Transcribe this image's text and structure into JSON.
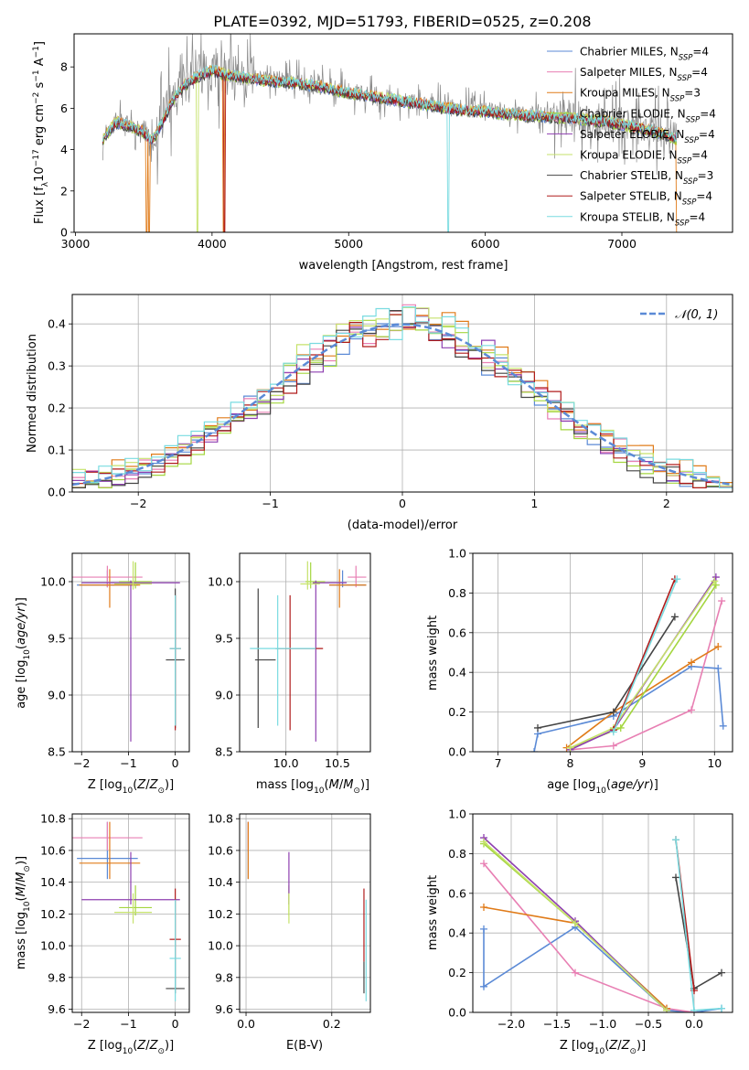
{
  "figure_title": "PLATE=0392, MJD=51793, FIBERID=0525, z=0.208",
  "colors": {
    "Chabrier MILES": "#5b8ad6",
    "Salpeter MILES": "#e87fb3",
    "Kroupa MILES": "#e07b19",
    "Chabrier ELODIE": "#a4d63f",
    "Salpeter ELODIE": "#8e3fb0",
    "Kroupa ELODIE": "#c6e26b",
    "Chabrier STELIB": "#444444",
    "Salpeter STELIB": "#b01b1b",
    "Kroupa STELIB": "#79dbe0",
    "data": "#8a8a8a",
    "normal": "#5b8ad6"
  },
  "chart_data": [
    {
      "id": "spectrum",
      "type": "line",
      "xlabel": "wavelength [Angstrom, rest frame]",
      "ylabel": "Flux [fλ10⁻¹⁷ erg cm⁻² s⁻¹ A⁻¹]",
      "xlim": [
        2990,
        7810
      ],
      "ylim": [
        0,
        9.6
      ],
      "xticks": [
        3000,
        4000,
        5000,
        6000,
        7000
      ],
      "yticks": [
        0,
        2,
        4,
        6,
        8
      ],
      "legend": "top-right",
      "continuum": {
        "x": [
          3200,
          3300,
          3400,
          3500,
          3550,
          3600,
          3700,
          3800,
          3900,
          4000,
          4100,
          4200,
          4400,
          4600,
          4800,
          5000,
          5200,
          5500,
          5800,
          6000,
          6300,
          6600,
          6900,
          7200,
          7400
        ],
        "y": [
          4.6,
          5.4,
          5.2,
          4.9,
          4.5,
          4.9,
          6.3,
          7.2,
          7.6,
          7.9,
          7.7,
          7.6,
          7.4,
          7.3,
          7.1,
          6.8,
          6.6,
          6.3,
          6.0,
          5.9,
          5.7,
          5.6,
          5.4,
          5.0,
          4.6
        ]
      },
      "series": [
        {
          "name": "Chabrier MILES, N_SSP=4",
          "legend_main": "Chabrier MILES, N",
          "legend_sub": "SSP",
          "legend_tail": "=4"
        },
        {
          "name": "Salpeter MILES, N_SSP=4",
          "legend_main": "Salpeter MILES, N",
          "legend_sub": "SSP",
          "legend_tail": "=4"
        },
        {
          "name": "Kroupa MILES, N_SSP=3",
          "legend_main": "Kroupa MILES, N",
          "legend_sub": "SSP",
          "legend_tail": "=3"
        },
        {
          "name": "Chabrier ELODIE, N_SSP=4",
          "legend_main": "Chabrier ELODIE, N",
          "legend_sub": "SSP",
          "legend_tail": "=4"
        },
        {
          "name": "Salpeter ELODIE, N_SSP=4",
          "legend_main": "Salpeter ELODIE, N",
          "legend_sub": "SSP",
          "legend_tail": "=4"
        },
        {
          "name": "Kroupa ELODIE, N_SSP=4",
          "legend_main": "Kroupa ELODIE, N",
          "legend_sub": "SSP",
          "legend_tail": "=4"
        },
        {
          "name": "Chabrier STELIB, N_SSP=3",
          "legend_main": "Chabrier STELIB, N",
          "legend_sub": "SSP",
          "legend_tail": "=3"
        },
        {
          "name": "Salpeter STELIB, N_SSP=4",
          "legend_main": "Salpeter STELIB, N",
          "legend_sub": "SSP",
          "legend_tail": "=4"
        },
        {
          "name": "Kroupa STELIB, N_SSP=4",
          "legend_main": "Kroupa STELIB, N",
          "legend_sub": "SSP",
          "legend_tail": "=4"
        }
      ]
    },
    {
      "id": "residuals",
      "type": "histogram",
      "xlabel": "(data-model)/error",
      "ylabel": "Normed distribution",
      "xlim": [
        -2.5,
        2.5
      ],
      "ylim": [
        0,
        0.47
      ],
      "xticks": [
        -2,
        -1,
        0,
        1,
        2
      ],
      "yticks": [
        0.0,
        0.1,
        0.2,
        0.3,
        0.4
      ],
      "grid": true,
      "legend": "top-right",
      "reference": "N(0,1)",
      "legend_label": "𝒩(0, 1)"
    },
    {
      "id": "age_vs_Z",
      "type": "errorbar",
      "xlabel": "Z [log₁₀(Z/Z⊙)]",
      "ylabel": "age  [log₁₀(age/yr)]",
      "xlim": [
        -2.2,
        0.3
      ],
      "ylim": [
        8.5,
        10.25
      ],
      "xticks": [
        -2,
        -1,
        0
      ],
      "yticks": [
        8.5,
        9.0,
        9.5,
        10.0
      ],
      "grid": true
    },
    {
      "id": "age_vs_mass",
      "type": "errorbar",
      "xlabel": "mass [log₁₀(M/M⊙)]",
      "ylabel": "",
      "xlim": [
        9.55,
        10.82
      ],
      "ylim": [
        8.5,
        10.25
      ],
      "xticks": [
        10.0,
        10.5
      ],
      "yticks": [
        8.5,
        9.0,
        9.5,
        10.0
      ],
      "grid": true
    },
    {
      "id": "weight_vs_age",
      "type": "line",
      "xlabel": "age  [log₁₀(age/yr)]",
      "ylabel": "mass weight",
      "xlim": [
        6.65,
        10.25
      ],
      "ylim": [
        0,
        1
      ],
      "xticks": [
        7,
        8,
        9,
        10
      ],
      "yticks": [
        0.0,
        0.2,
        0.4,
        0.6,
        0.8,
        1.0
      ],
      "grid": true
    },
    {
      "id": "mass_vs_Z",
      "type": "errorbar",
      "xlabel": "Z [log₁₀(Z/Z⊙)]",
      "ylabel": "mass [log₁₀(M/M⊙)]",
      "xlim": [
        -2.2,
        0.3
      ],
      "ylim": [
        9.58,
        10.83
      ],
      "xticks": [
        -2,
        -1,
        0
      ],
      "yticks": [
        9.6,
        9.8,
        10.0,
        10.2,
        10.4,
        10.6,
        10.8
      ],
      "grid": true
    },
    {
      "id": "mass_vs_ebv",
      "type": "errorbar",
      "xlabel": "E(B-V)",
      "ylabel": "",
      "xlim": [
        -0.015,
        0.29
      ],
      "ylim": [
        9.58,
        10.83
      ],
      "xticks": [
        0.0,
        0.2
      ],
      "yticks": [
        9.6,
        9.8,
        10.0,
        10.2,
        10.4,
        10.6,
        10.8
      ],
      "grid": true
    },
    {
      "id": "weight_vs_Z",
      "type": "line",
      "xlabel": "Z [log₁₀(Z/Z⊙)]",
      "ylabel": "mass weight",
      "xlim": [
        -2.42,
        0.42
      ],
      "ylim": [
        0,
        1
      ],
      "xticks": [
        -2.0,
        -1.5,
        -1.0,
        -0.5,
        0.0
      ],
      "yticks": [
        0.0,
        0.2,
        0.4,
        0.6,
        0.8,
        1.0
      ],
      "grid": true
    }
  ],
  "fits": [
    {
      "model": "Chabrier MILES",
      "Z": -1.45,
      "Zerr": 0.65,
      "age": 9.97,
      "ageErrLo": 0.02,
      "ageErrHi": 0.13,
      "mass": 10.55,
      "massErrLo": 0.13,
      "massErrHi": 0.23,
      "ebv": 0.005,
      "sfh_age": [
        10.12,
        10.05,
        9.68,
        8.6,
        7.55,
        7.5
      ],
      "sfh_w": [
        0.13,
        0.42,
        0.43,
        0.18,
        0.09,
        0.0
      ],
      "sfh_Z": [
        -2.3,
        -2.3,
        -1.3,
        -0.3,
        0.0,
        0.3
      ],
      "sfh_wz": [
        0.42,
        0.13,
        0.43,
        0.01,
        0.0,
        0.02
      ]
    },
    {
      "model": "Salpeter MILES",
      "Z": -1.45,
      "Zerr": 0.75,
      "age": 10.04,
      "ageErrLo": 0.09,
      "ageErrHi": 0.1,
      "mass": 10.68,
      "massErrLo": 0.08,
      "massErrHi": 0.1,
      "ebv": 0.005,
      "sfh_age": [
        10.1,
        9.68,
        8.6,
        8.0
      ],
      "sfh_w": [
        0.76,
        0.21,
        0.03,
        0.01
      ],
      "sfh_Z": [
        -2.3,
        -1.3,
        -0.3,
        0.0
      ],
      "sfh_wz": [
        0.75,
        0.2,
        0.02,
        0.0
      ]
    },
    {
      "model": "Kroupa MILES",
      "Z": -1.4,
      "Zerr": 0.65,
      "age": 9.97,
      "ageErrLo": 0.2,
      "ageErrHi": 0.14,
      "mass": 10.52,
      "massErrLo": 0.1,
      "massErrHi": 0.26,
      "ebv": 0.005,
      "sfh_age": [
        10.05,
        9.68,
        8.6,
        7.95
      ],
      "sfh_w": [
        0.53,
        0.45,
        0.2,
        0.02
      ],
      "sfh_Z": [
        -2.3,
        -1.3,
        -0.3
      ],
      "sfh_wz": [
        0.53,
        0.45,
        0.02
      ]
    },
    {
      "model": "Chabrier ELODIE",
      "Z": -0.85,
      "Zerr": 0.35,
      "age": 10.0,
      "ageErrLo": 0.06,
      "ageErrHi": 0.17,
      "mass": 10.24,
      "massErrLo": 0.05,
      "massErrHi": 0.14,
      "ebv": 0.1,
      "sfh_age": [
        10.02,
        8.7,
        8.0
      ],
      "sfh_w": [
        0.84,
        0.12,
        0.02
      ],
      "sfh_Z": [
        -2.3,
        -1.3,
        -0.3
      ],
      "sfh_wz": [
        0.85,
        0.45,
        0.01
      ]
    },
    {
      "model": "Salpeter ELODIE",
      "Z": -0.95,
      "Zerr": 1.05,
      "age": 9.99,
      "ageErrLo": 1.4,
      "ageErrHi": 0.02,
      "mass": 10.29,
      "massErrLo": 0.03,
      "massErrHi": 0.3,
      "ebv": 0.1,
      "sfh_age": [
        10.02,
        8.6,
        8.0
      ],
      "sfh_w": [
        0.88,
        0.11,
        0.01
      ],
      "sfh_Z": [
        -2.3,
        -1.3,
        -0.3
      ],
      "sfh_wz": [
        0.88,
        0.46,
        0.01
      ]
    },
    {
      "model": "Kroupa ELODIE",
      "Z": -0.9,
      "Zerr": 0.4,
      "age": 9.98,
      "ageErrLo": 0.05,
      "ageErrHi": 0.2,
      "mass": 10.21,
      "massErrLo": 0.07,
      "massErrHi": 0.12,
      "ebv": 0.1,
      "sfh_age": [
        10.0,
        8.6,
        8.0
      ],
      "sfh_w": [
        0.86,
        0.12,
        0.02
      ],
      "sfh_Z": [
        -2.3,
        -1.3,
        -0.3
      ],
      "sfh_wz": [
        0.86,
        0.45,
        0.01
      ]
    },
    {
      "model": "Chabrier STELIB",
      "Z": 0.0,
      "Zerr": 0.2,
      "age": 9.31,
      "ageErrLo": 0.6,
      "ageErrHi": 0.63,
      "mass": 9.73,
      "massErrLo": 0.03,
      "massErrHi": 0.17,
      "ebv": 0.275,
      "sfh_age": [
        9.45,
        8.6,
        7.55
      ],
      "sfh_w": [
        0.68,
        0.2,
        0.12
      ],
      "sfh_Z": [
        -0.2,
        0.0,
        0.3
      ],
      "sfh_wz": [
        0.68,
        0.12,
        0.2
      ]
    },
    {
      "model": "Salpeter STELIB",
      "Z": 0.0,
      "Zerr": 0.12,
      "age": 9.41,
      "ageErrLo": 0.72,
      "ageErrHi": 0.47,
      "mass": 10.04,
      "massErrLo": 0.14,
      "massErrHi": 0.32,
      "ebv": 0.275,
      "sfh_age": [
        9.45,
        8.6
      ],
      "sfh_w": [
        0.87,
        0.11
      ],
      "sfh_Z": [
        -0.2,
        0.0
      ],
      "sfh_wz": [
        0.87,
        0.11
      ]
    },
    {
      "model": "Kroupa STELIB",
      "Z": 0.0,
      "Zerr": 0.12,
      "age": 9.41,
      "ageErrLo": 0.68,
      "ageErrHi": 0.47,
      "mass": 9.92,
      "massErrLo": 0.27,
      "massErrHi": 0.37,
      "ebv": 0.28,
      "sfh_age": [
        9.48,
        8.6
      ],
      "sfh_w": [
        0.87,
        0.1
      ],
      "sfh_Z": [
        -0.2,
        0.0,
        0.3
      ],
      "sfh_wz": [
        0.87,
        0.01,
        0.02
      ]
    }
  ]
}
